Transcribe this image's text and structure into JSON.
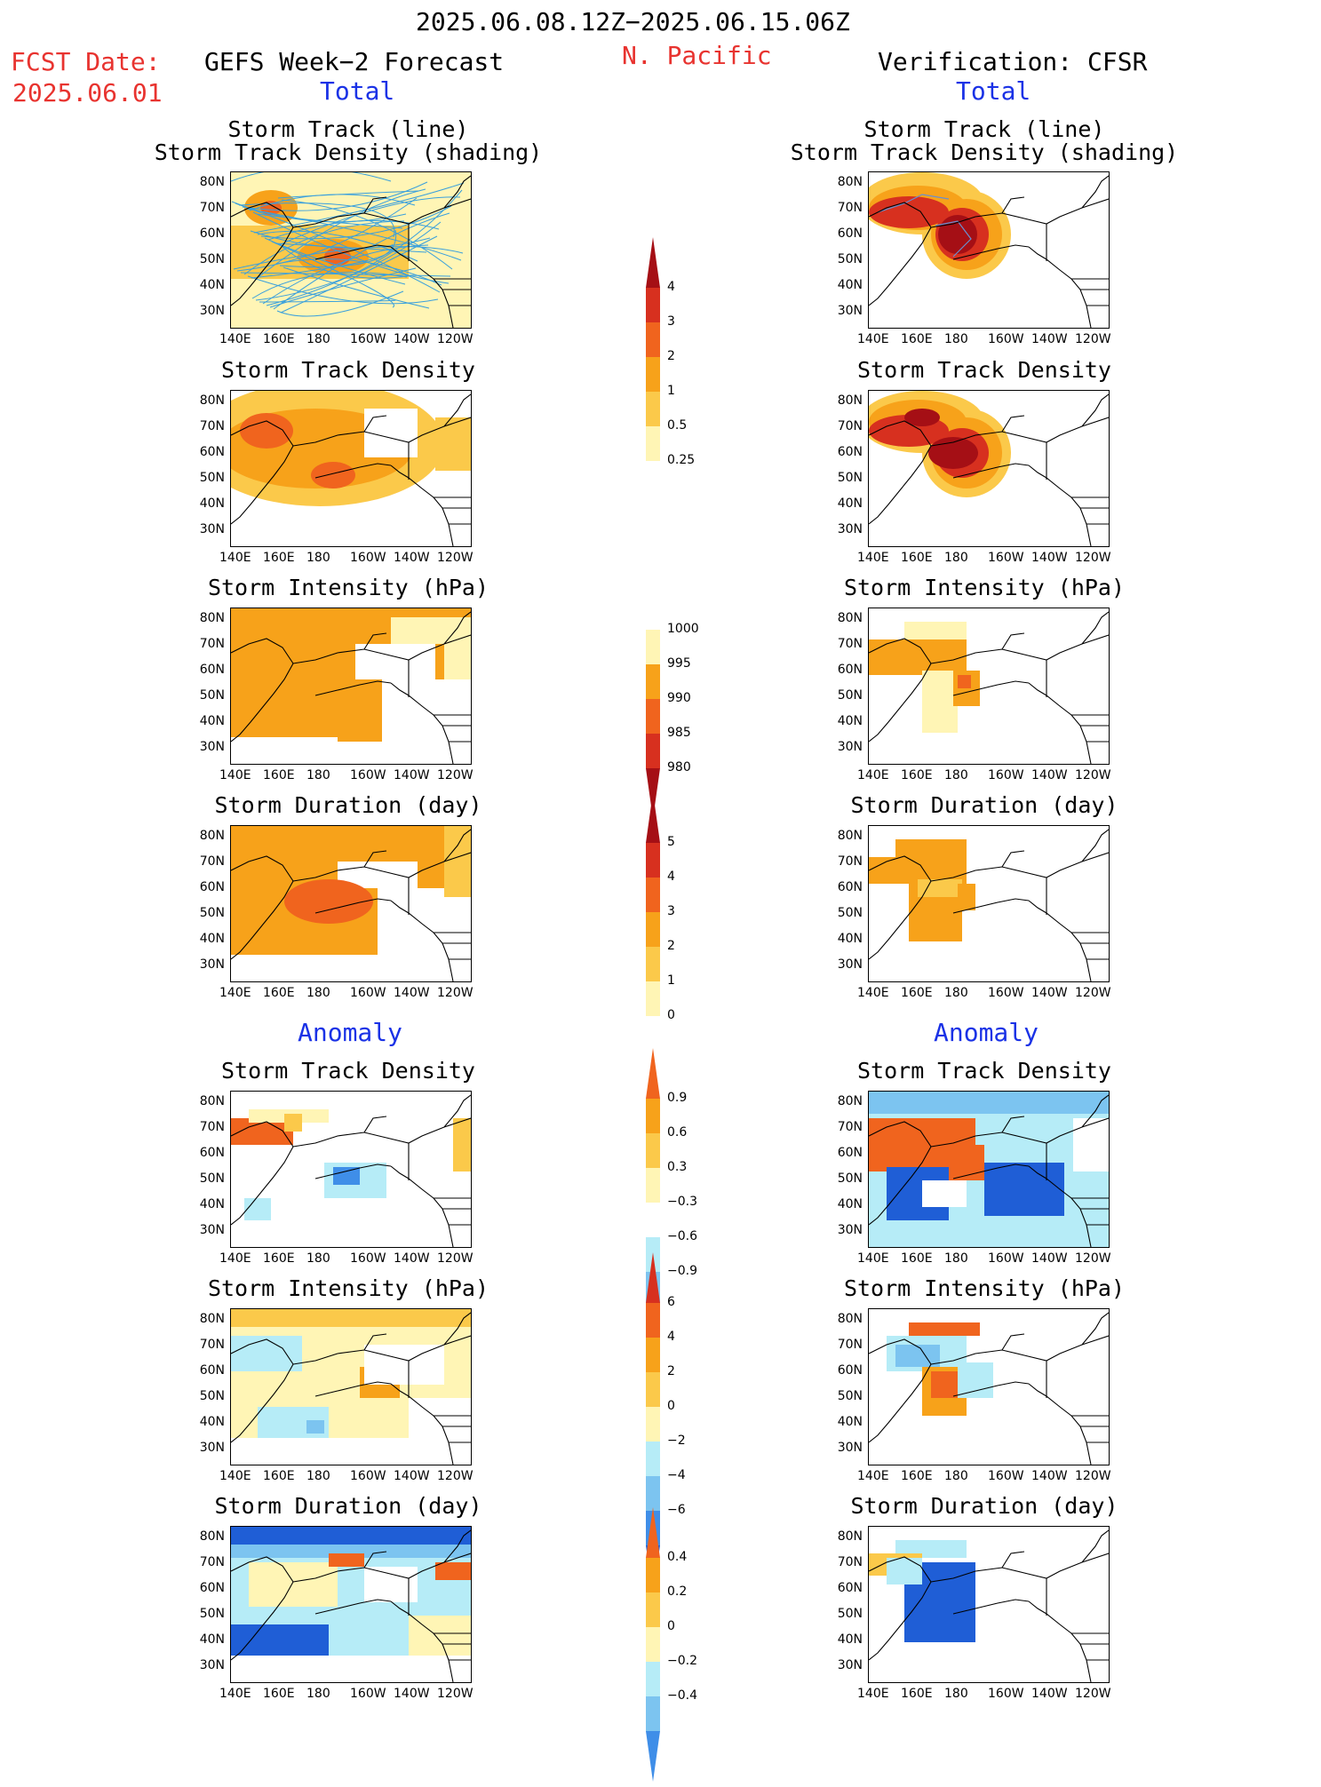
{
  "header": {
    "period": "2025.06.08.12Z−2025.06.15.06Z",
    "fcst_label": "FCST Date:",
    "fcst_date": "2025.06.01",
    "left_title": "GEFS Week−2 Forecast",
    "region": "N. Pacific",
    "right_title": "Verification: CFSR"
  },
  "sections": {
    "total": "Total",
    "anomaly": "Anomaly"
  },
  "panel_titles": {
    "track1": "Storm Track (line)",
    "track2": "Storm Track Density (shading)",
    "density": "Storm Track Density",
    "intensity": "Storm Intensity (hPa)",
    "duration": "Storm Duration (day)"
  },
  "axes": {
    "lat": [
      "80N",
      "70N",
      "60N",
      "50N",
      "40N",
      "30N"
    ],
    "lon": [
      "140E",
      "160E",
      "180",
      "160W",
      "140W",
      "120W"
    ]
  },
  "colorbars": {
    "density_total": [
      "4",
      "3",
      "2",
      "1",
      "0.5",
      "0.25"
    ],
    "intensity_total": [
      "1000",
      "995",
      "990",
      "985",
      "980"
    ],
    "duration_total": [
      "5",
      "4",
      "3",
      "2",
      "1",
      "0"
    ],
    "density_anom": [
      "0.9",
      "0.6",
      "0.3",
      "−0.3",
      "−0.6",
      "−0.9"
    ],
    "intensity_anom": [
      "6",
      "4",
      "2",
      "0",
      "−2",
      "−4",
      "−6"
    ],
    "duration_anom": [
      "0.4",
      "0.2",
      "0",
      "−0.2",
      "−0.4"
    ]
  },
  "colors": {
    "dark_red": "#a50f15",
    "red": "#d7301f",
    "orange_red": "#f0641e",
    "orange": "#f7a21a",
    "light_orange": "#fbc94a",
    "pale_yellow": "#fff5b5",
    "light_blue": "#b6ecf7",
    "mid_blue": "#7cc4f0",
    "blue": "#3f8ee8",
    "dark_blue": "#1f5ed6",
    "track_line": "#3aa0dc"
  }
}
